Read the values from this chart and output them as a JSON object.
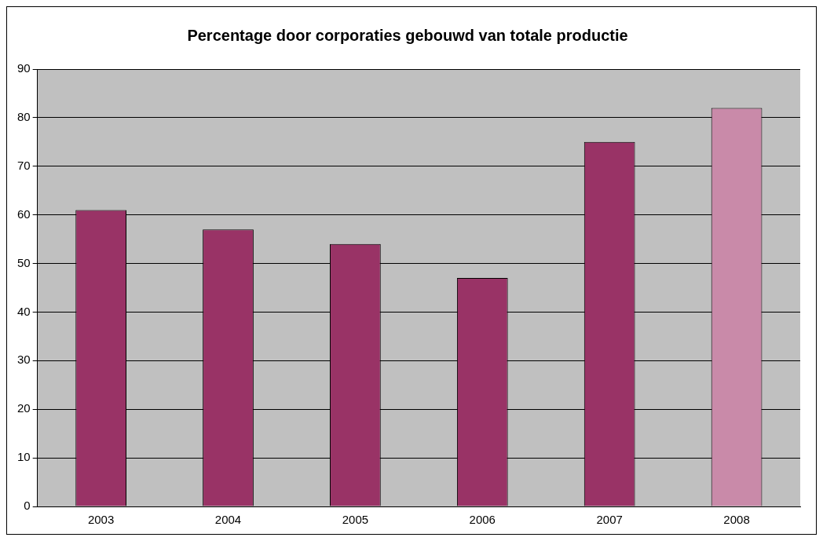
{
  "chart_data": {
    "type": "bar",
    "title": "Percentage door corporaties gebouwd van totale productie",
    "categories": [
      "2003",
      "2004",
      "2005",
      "2006",
      "2007",
      "2008"
    ],
    "values": [
      61,
      57,
      54,
      47,
      75,
      82
    ],
    "colors": [
      "#993366",
      "#993366",
      "#993366",
      "#993366",
      "#993366",
      "#c98aa9"
    ],
    "ylim": [
      0,
      90
    ],
    "yticks": [
      0,
      10,
      20,
      30,
      40,
      50,
      60,
      70,
      80,
      90
    ],
    "grid": "y",
    "legend": false
  }
}
